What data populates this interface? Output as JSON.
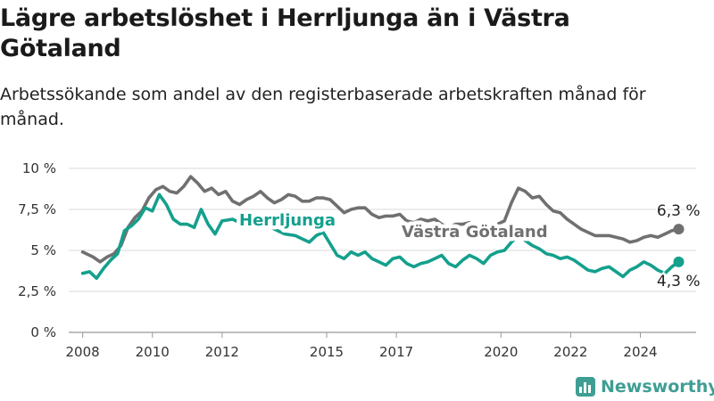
{
  "title": "Lägre arbetslöshet i Herrljunga än i Västra Götaland",
  "subtitle": "Arbetssökande som andel av den registerbaserade arbetskraften månad för månad.",
  "brand": {
    "name": "Newsworthy",
    "icon": "newsworthy-logo-icon",
    "color": "#3f9e94"
  },
  "chart_data": {
    "type": "line",
    "y_unit": "%",
    "ylim": [
      0,
      10
    ],
    "y_ticks": [
      {
        "value": 0,
        "label": "0 %"
      },
      {
        "value": 2.5,
        "label": "2,5 %"
      },
      {
        "value": 5,
        "label": "5 %"
      },
      {
        "value": 7.5,
        "label": "7,5 %"
      },
      {
        "value": 10,
        "label": "10 %"
      }
    ],
    "xlim": [
      2007.6,
      2025.6
    ],
    "x_ticks": [
      {
        "value": 2008,
        "label": "2008"
      },
      {
        "value": 2010,
        "label": "2010"
      },
      {
        "value": 2012,
        "label": "2012"
      },
      {
        "value": 2015,
        "label": "2015"
      },
      {
        "value": 2017,
        "label": "2017"
      },
      {
        "value": 2020,
        "label": "2020"
      },
      {
        "value": 2022,
        "label": "2022"
      },
      {
        "value": 2024,
        "label": "2024"
      }
    ],
    "grid": true,
    "series": [
      {
        "name": "Västra Götaland",
        "color": "#707070",
        "end_label": "6,3 %",
        "points": [
          [
            2008.0,
            4.9
          ],
          [
            2008.3,
            4.6
          ],
          [
            2008.5,
            4.3
          ],
          [
            2008.7,
            4.6
          ],
          [
            2008.9,
            4.8
          ],
          [
            2009.1,
            5.3
          ],
          [
            2009.3,
            6.4
          ],
          [
            2009.5,
            7.0
          ],
          [
            2009.7,
            7.4
          ],
          [
            2009.9,
            8.2
          ],
          [
            2010.1,
            8.7
          ],
          [
            2010.3,
            8.9
          ],
          [
            2010.5,
            8.6
          ],
          [
            2010.7,
            8.5
          ],
          [
            2010.9,
            8.9
          ],
          [
            2011.1,
            9.5
          ],
          [
            2011.3,
            9.1
          ],
          [
            2011.5,
            8.6
          ],
          [
            2011.7,
            8.8
          ],
          [
            2011.9,
            8.4
          ],
          [
            2012.1,
            8.6
          ],
          [
            2012.3,
            8.0
          ],
          [
            2012.5,
            7.8
          ],
          [
            2012.7,
            8.1
          ],
          [
            2012.9,
            8.3
          ],
          [
            2013.1,
            8.6
          ],
          [
            2013.3,
            8.2
          ],
          [
            2013.5,
            7.9
          ],
          [
            2013.7,
            8.1
          ],
          [
            2013.9,
            8.4
          ],
          [
            2014.1,
            8.3
          ],
          [
            2014.3,
            8.0
          ],
          [
            2014.5,
            8.0
          ],
          [
            2014.7,
            8.2
          ],
          [
            2014.9,
            8.2
          ],
          [
            2015.1,
            8.1
          ],
          [
            2015.3,
            7.7
          ],
          [
            2015.5,
            7.3
          ],
          [
            2015.7,
            7.5
          ],
          [
            2015.9,
            7.6
          ],
          [
            2016.1,
            7.6
          ],
          [
            2016.3,
            7.2
          ],
          [
            2016.5,
            7.0
          ],
          [
            2016.7,
            7.1
          ],
          [
            2016.9,
            7.1
          ],
          [
            2017.1,
            7.2
          ],
          [
            2017.3,
            6.8
          ],
          [
            2017.5,
            6.7
          ],
          [
            2017.7,
            6.9
          ],
          [
            2017.9,
            6.8
          ],
          [
            2018.1,
            6.9
          ],
          [
            2018.3,
            6.6
          ],
          [
            2018.5,
            6.4
          ],
          [
            2018.7,
            6.6
          ],
          [
            2018.9,
            6.6
          ],
          [
            2019.1,
            6.7
          ],
          [
            2019.3,
            6.5
          ],
          [
            2019.5,
            6.4
          ],
          [
            2019.7,
            6.5
          ],
          [
            2019.9,
            6.6
          ],
          [
            2020.1,
            6.8
          ],
          [
            2020.3,
            7.9
          ],
          [
            2020.5,
            8.8
          ],
          [
            2020.7,
            8.6
          ],
          [
            2020.9,
            8.2
          ],
          [
            2021.1,
            8.3
          ],
          [
            2021.3,
            7.8
          ],
          [
            2021.5,
            7.4
          ],
          [
            2021.7,
            7.3
          ],
          [
            2021.9,
            6.9
          ],
          [
            2022.1,
            6.6
          ],
          [
            2022.3,
            6.3
          ],
          [
            2022.5,
            6.1
          ],
          [
            2022.7,
            5.9
          ],
          [
            2022.9,
            5.9
          ],
          [
            2023.1,
            5.9
          ],
          [
            2023.3,
            5.8
          ],
          [
            2023.5,
            5.7
          ],
          [
            2023.7,
            5.5
          ],
          [
            2023.9,
            5.6
          ],
          [
            2024.1,
            5.8
          ],
          [
            2024.3,
            5.9
          ],
          [
            2024.5,
            5.8
          ],
          [
            2024.7,
            6.0
          ],
          [
            2024.9,
            6.2
          ],
          [
            2025.1,
            6.3
          ]
        ]
      },
      {
        "name": "Herrljunga",
        "color": "#14a08d",
        "end_label": "4,3 %",
        "points": [
          [
            2008.0,
            3.6
          ],
          [
            2008.2,
            3.7
          ],
          [
            2008.4,
            3.3
          ],
          [
            2008.6,
            3.9
          ],
          [
            2008.8,
            4.4
          ],
          [
            2009.0,
            4.8
          ],
          [
            2009.2,
            6.2
          ],
          [
            2009.4,
            6.5
          ],
          [
            2009.6,
            6.9
          ],
          [
            2009.8,
            7.6
          ],
          [
            2010.0,
            7.4
          ],
          [
            2010.2,
            8.4
          ],
          [
            2010.4,
            7.8
          ],
          [
            2010.6,
            6.9
          ],
          [
            2010.8,
            6.6
          ],
          [
            2011.0,
            6.6
          ],
          [
            2011.2,
            6.4
          ],
          [
            2011.4,
            7.5
          ],
          [
            2011.6,
            6.6
          ],
          [
            2011.8,
            6.0
          ],
          [
            2012.0,
            6.8
          ],
          [
            2012.3,
            6.9
          ],
          [
            2012.6,
            6.6
          ],
          [
            2012.9,
            6.5
          ],
          [
            2013.2,
            6.7
          ],
          [
            2013.5,
            6.3
          ],
          [
            2013.8,
            6.0
          ],
          [
            2014.1,
            5.9
          ],
          [
            2014.3,
            5.7
          ],
          [
            2014.5,
            5.5
          ],
          [
            2014.7,
            5.9
          ],
          [
            2014.9,
            6.1
          ],
          [
            2015.1,
            5.4
          ],
          [
            2015.3,
            4.7
          ],
          [
            2015.5,
            4.5
          ],
          [
            2015.7,
            4.9
          ],
          [
            2015.9,
            4.7
          ],
          [
            2016.1,
            4.9
          ],
          [
            2016.3,
            4.5
          ],
          [
            2016.5,
            4.3
          ],
          [
            2016.7,
            4.1
          ],
          [
            2016.9,
            4.5
          ],
          [
            2017.1,
            4.6
          ],
          [
            2017.3,
            4.2
          ],
          [
            2017.5,
            4.0
          ],
          [
            2017.7,
            4.2
          ],
          [
            2017.9,
            4.3
          ],
          [
            2018.1,
            4.5
          ],
          [
            2018.3,
            4.7
          ],
          [
            2018.5,
            4.2
          ],
          [
            2018.7,
            4.0
          ],
          [
            2018.9,
            4.4
          ],
          [
            2019.1,
            4.7
          ],
          [
            2019.3,
            4.5
          ],
          [
            2019.5,
            4.2
          ],
          [
            2019.7,
            4.7
          ],
          [
            2019.9,
            4.9
          ],
          [
            2020.1,
            5.0
          ],
          [
            2020.3,
            5.5
          ],
          [
            2020.5,
            5.9
          ],
          [
            2020.7,
            5.6
          ],
          [
            2020.9,
            5.3
          ],
          [
            2021.1,
            5.1
          ],
          [
            2021.3,
            4.8
          ],
          [
            2021.5,
            4.7
          ],
          [
            2021.7,
            4.5
          ],
          [
            2021.9,
            4.6
          ],
          [
            2022.1,
            4.4
          ],
          [
            2022.3,
            4.1
          ],
          [
            2022.5,
            3.8
          ],
          [
            2022.7,
            3.7
          ],
          [
            2022.9,
            3.9
          ],
          [
            2023.1,
            4.0
          ],
          [
            2023.3,
            3.7
          ],
          [
            2023.5,
            3.4
          ],
          [
            2023.7,
            3.8
          ],
          [
            2023.9,
            4.0
          ],
          [
            2024.1,
            4.3
          ],
          [
            2024.3,
            4.1
          ],
          [
            2024.5,
            3.8
          ],
          [
            2024.7,
            3.6
          ],
          [
            2024.9,
            4.0
          ],
          [
            2025.1,
            4.3
          ]
        ]
      }
    ],
    "series_labels": [
      {
        "text": "Herrljunga",
        "series": 1
      },
      {
        "text": "Västra Götaland",
        "series": 0
      }
    ]
  }
}
